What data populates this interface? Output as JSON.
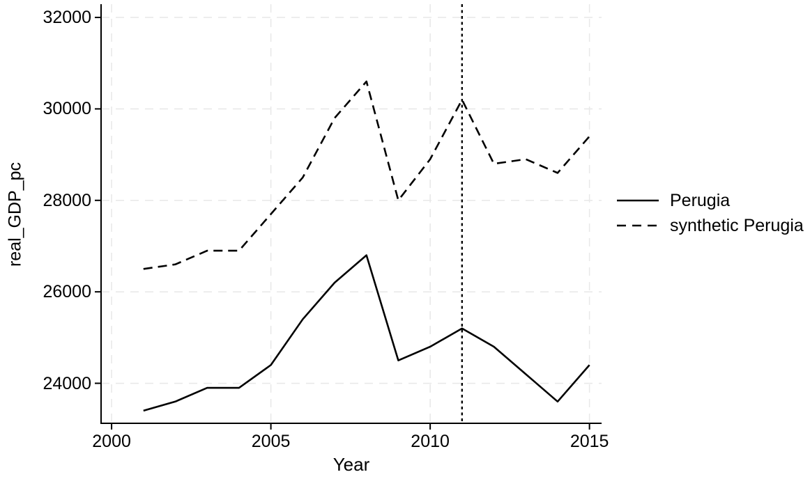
{
  "chart_data": {
    "type": "line",
    "xlabel": "Year",
    "ylabel": "real_GDP_pc",
    "x": [
      2001,
      2002,
      2003,
      2004,
      2005,
      2006,
      2007,
      2008,
      2009,
      2010,
      2011,
      2012,
      2013,
      2014,
      2015
    ],
    "series": [
      {
        "id": "perugia",
        "name": "Perugia",
        "line_style": "solid",
        "color": "#000000",
        "values": [
          23400,
          23600,
          23900,
          23900,
          24400,
          25400,
          26200,
          26800,
          24500,
          24800,
          25200,
          24800,
          24200,
          23600,
          24400
        ]
      },
      {
        "id": "synthetic-perugia",
        "name": "synthetic Perugia",
        "line_style": "dashed",
        "color": "#000000",
        "values": [
          26500,
          26600,
          26900,
          26900,
          27700,
          28500,
          29800,
          30600,
          28000,
          28900,
          30200,
          28800,
          28900,
          28600,
          29400
        ]
      }
    ],
    "reference_line": {
      "axis": "x",
      "value": 2011,
      "style": "dotted",
      "color": "#000000"
    },
    "x_ticks": [
      2000,
      2005,
      2010,
      2015
    ],
    "y_ticks": [
      24000,
      26000,
      28000,
      30000,
      32000
    ],
    "xlim": [
      1999.67,
      2015.38
    ],
    "ylim": [
      23125,
      32290
    ],
    "grid": true,
    "grid_style": "dashed",
    "legend_position": "right-center",
    "colors": {
      "line": "#000000",
      "grid": "#e9e9e9",
      "axis": "#000000",
      "text": "#000000",
      "background": "#ffffff"
    }
  }
}
